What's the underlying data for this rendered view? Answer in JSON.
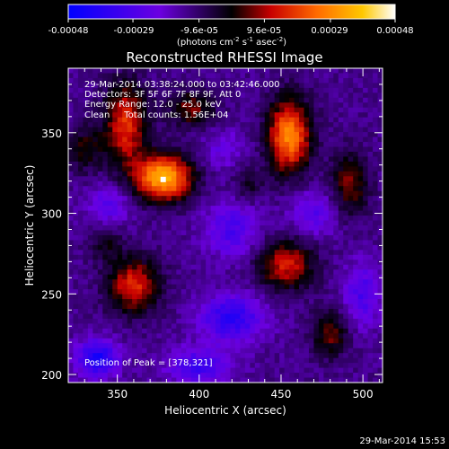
{
  "colorbar": {
    "ticks": [
      "-0.00048",
      "-0.00029",
      "-9.6e-05",
      "9.6e-05",
      "0.00029",
      "0.00048"
    ],
    "tick_values": [
      -0.00048,
      -0.00029,
      -9.6e-05,
      9.6e-05,
      0.00029,
      0.00048
    ],
    "range": [
      -0.00048,
      0.00048
    ],
    "unit_base": "(photons cm",
    "unit_exp1": "-2",
    "unit_mid": " s",
    "unit_exp2": "-1",
    "unit_end": " asec",
    "unit_exp3": "-2",
    "unit_close": ")",
    "colors": [
      "#0000ff",
      "#6b00e0",
      "#000000",
      "#c80000",
      "#ff6a00",
      "#ffc800",
      "#ffffff"
    ]
  },
  "chart_data": {
    "type": "heatmap",
    "title": "Reconstructed RHESSI Image",
    "xlabel": "Heliocentric X (arcsec)",
    "ylabel": "Heliocentric Y (arcsec)",
    "xlim": [
      320,
      512
    ],
    "ylim": [
      195,
      390
    ],
    "x_ticks": [
      350,
      400,
      450,
      500
    ],
    "y_ticks": [
      200,
      250,
      300,
      350
    ],
    "peak_position": [
      378,
      321
    ],
    "sources": [
      {
        "x": 378,
        "y": 322,
        "sx": 12,
        "sy": 10,
        "amp": 1.0
      },
      {
        "x": 355,
        "y": 355,
        "sx": 9,
        "sy": 18,
        "amp": 0.62
      },
      {
        "x": 455,
        "y": 348,
        "sx": 9,
        "sy": 16,
        "amp": 0.85
      },
      {
        "x": 492,
        "y": 318,
        "sx": 8,
        "sy": 14,
        "amp": 0.4
      },
      {
        "x": 360,
        "y": 255,
        "sx": 11,
        "sy": 12,
        "amp": 0.6
      },
      {
        "x": 453,
        "y": 268,
        "sx": 12,
        "sy": 11,
        "amp": 0.55
      },
      {
        "x": 343,
        "y": 282,
        "sx": 7,
        "sy": 8,
        "amp": 0.25
      },
      {
        "x": 430,
        "y": 318,
        "sx": 6,
        "sy": 8,
        "amp": 0.22
      },
      {
        "x": 395,
        "y": 365,
        "sx": 10,
        "sy": 8,
        "amp": 0.4
      },
      {
        "x": 480,
        "y": 225,
        "sx": 8,
        "sy": 10,
        "amp": 0.38
      },
      {
        "x": 330,
        "y": 340,
        "sx": 8,
        "sy": 10,
        "amp": 0.3
      },
      {
        "x": 338,
        "y": 210,
        "sx": 9,
        "sy": 8,
        "amp": -0.6
      },
      {
        "x": 420,
        "y": 235,
        "sx": 14,
        "sy": 10,
        "amp": -0.5
      },
      {
        "x": 420,
        "y": 290,
        "sx": 12,
        "sy": 12,
        "amp": -0.35
      },
      {
        "x": 470,
        "y": 300,
        "sx": 10,
        "sy": 10,
        "amp": -0.3
      },
      {
        "x": 400,
        "y": 205,
        "sx": 14,
        "sy": 8,
        "amp": -0.4
      },
      {
        "x": 345,
        "y": 305,
        "sx": 9,
        "sy": 9,
        "amp": -0.3
      },
      {
        "x": 500,
        "y": 250,
        "sx": 8,
        "sy": 14,
        "amp": -0.35
      },
      {
        "x": 415,
        "y": 340,
        "sx": 9,
        "sy": 9,
        "amp": -0.2
      }
    ],
    "background": -0.28,
    "info": {
      "time": "29-Mar-2014 03:38:24.000 to 03:42:46.000",
      "detectors": "Detectors: 3F 5F 6F 7F 8F 9F, Att 0",
      "energy": "Energy Range: 12.0 - 25.0 keV",
      "method": "Clean     Total counts: 1.56E+04",
      "peak": "Position of Peak = [378,321]"
    }
  },
  "footer": {
    "timestamp": "29-Mar-2014 15:53"
  }
}
